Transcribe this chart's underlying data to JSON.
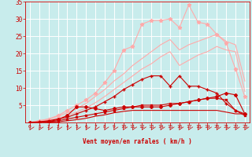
{
  "background_color": "#c8ecec",
  "grid_color": "#b0d8d8",
  "x_ticks": [
    0,
    1,
    2,
    3,
    4,
    5,
    6,
    7,
    8,
    9,
    10,
    11,
    12,
    13,
    14,
    15,
    16,
    17,
    18,
    19,
    20,
    21,
    22,
    23
  ],
  "x_labels": [
    "0",
    "1",
    "2",
    "3",
    "4",
    "5",
    "6",
    "7",
    "8",
    "9",
    "10",
    "11",
    "12",
    "13",
    "14",
    "15",
    "16",
    "17",
    "18",
    "19",
    "20",
    "21",
    "22",
    "23"
  ],
  "ylim": [
    0,
    35
  ],
  "yticks": [
    5,
    10,
    15,
    20,
    25,
    30,
    35
  ],
  "xlabel": "Vent moyen/en rafales ( km/h )",
  "xlabel_color": "#cc0000",
  "tick_color": "#cc0000",
  "line_light_starred": {
    "color": "#ffaaaa",
    "values": [
      0,
      0.5,
      1.0,
      2.0,
      3.5,
      5.0,
      6.5,
      8.5,
      11.5,
      15.0,
      21.0,
      22.0,
      28.5,
      29.5,
      29.5,
      30.0,
      27.5,
      34.0,
      29.0,
      28.5,
      25.5,
      23.0,
      15.5,
      7.5
    ],
    "marker": "*",
    "markersize": 3.5,
    "linewidth": 0.8
  },
  "line_light_upper": {
    "color": "#ffaaaa",
    "values": [
      0,
      0.5,
      1.0,
      1.8,
      2.8,
      4.0,
      5.5,
      7.5,
      9.5,
      12.0,
      14.0,
      16.5,
      18.5,
      20.5,
      22.5,
      24.0,
      21.0,
      22.5,
      23.5,
      24.5,
      25.5,
      23.5,
      22.5,
      12.0
    ],
    "linewidth": 0.8
  },
  "line_light_lower": {
    "color": "#ffaaaa",
    "values": [
      0,
      0.3,
      0.6,
      1.2,
      2.0,
      3.0,
      4.2,
      5.7,
      7.5,
      9.5,
      11.5,
      13.5,
      15.5,
      17.0,
      19.0,
      20.5,
      16.5,
      18.0,
      19.5,
      20.5,
      22.0,
      21.0,
      20.5,
      9.0
    ],
    "linewidth": 0.8
  },
  "line_dark_peaked": {
    "color": "#cc0000",
    "values": [
      0,
      0.2,
      0.5,
      1.0,
      1.5,
      2.5,
      3.5,
      4.5,
      6.0,
      7.5,
      9.5,
      11.0,
      12.5,
      13.5,
      13.5,
      10.5,
      13.5,
      10.5,
      10.5,
      9.5,
      8.5,
      5.5,
      3.5,
      2.5
    ],
    "marker": "+",
    "markersize": 3.5,
    "linewidth": 0.8
  },
  "line_dark_dashed": {
    "color": "#cc0000",
    "values": [
      0,
      0.1,
      0.3,
      0.8,
      2.0,
      4.5,
      4.5,
      4.0,
      3.5,
      4.0,
      4.5,
      4.5,
      4.5,
      4.5,
      4.5,
      5.0,
      5.5,
      6.0,
      6.5,
      7.0,
      7.5,
      8.5,
      8.0,
      2.5
    ],
    "marker": "D",
    "markersize": 2.0,
    "linewidth": 0.8
  },
  "line_dark_mid": {
    "color": "#cc0000",
    "values": [
      0,
      0.1,
      0.2,
      0.5,
      1.0,
      1.5,
      2.0,
      2.5,
      3.0,
      3.5,
      4.0,
      4.5,
      5.0,
      5.0,
      5.0,
      5.5,
      5.5,
      6.0,
      6.5,
      7.0,
      7.0,
      6.5,
      3.5,
      2.0
    ],
    "marker": "s",
    "markersize": 1.8,
    "linewidth": 0.8
  },
  "line_dark_flat": {
    "color": "#cc0000",
    "values": [
      0,
      0.05,
      0.1,
      0.2,
      0.5,
      0.8,
      1.2,
      1.8,
      2.2,
      2.8,
      3.2,
      3.5,
      3.5,
      3.5,
      3.5,
      3.5,
      3.5,
      3.5,
      3.5,
      3.5,
      3.5,
      3.0,
      2.5,
      2.5
    ],
    "linewidth": 0.8
  }
}
